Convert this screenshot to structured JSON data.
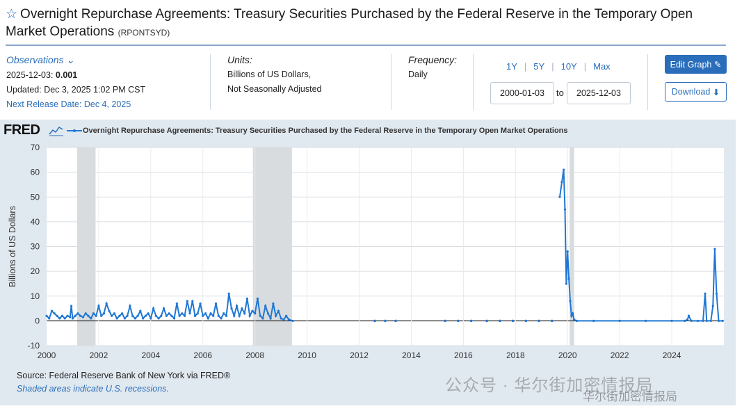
{
  "header": {
    "title": "Overnight Repurchase Agreements: Treasury Securities Purchased by the Federal Reserve in the Temporary Open Market Operations",
    "series_code": "(RPONTSYD)"
  },
  "observations": {
    "label": "Observations",
    "date": "2025-12-03:",
    "value": "0.001",
    "updated": "Updated: Dec 3, 2025 1:02 PM CST",
    "next_release": "Next Release Date: Dec 4, 2025"
  },
  "units": {
    "label": "Units:",
    "line1": "Billions of US Dollars,",
    "line2": "Not Seasonally Adjusted"
  },
  "frequency": {
    "label": "Frequency:",
    "value": "Daily"
  },
  "range": {
    "links": [
      "1Y",
      "5Y",
      "10Y",
      "Max"
    ],
    "start": "2000-01-03",
    "to": "to",
    "end": "2025-12-03"
  },
  "buttons": {
    "edit": "Edit Graph",
    "download": "Download"
  },
  "footer": {
    "source": "Source: Federal Reserve Bank of New York via FRED®",
    "shaded": "Shaded areas indicate U.S. recessions."
  },
  "watermark": {
    "main": "公众号 · 华尔街加密情报局",
    "sub": "华尔街加密情报局"
  },
  "colors": {
    "accent": "#2a6ebb",
    "series": "#1f77d4",
    "recession": "#c8cdd2"
  },
  "chart_data": {
    "type": "line",
    "logo": "FRED",
    "title": "Overnight Repurchase Agreements: Treasury Securities Purchased by the Federal Reserve in the Temporary Open Market Operations",
    "xlabel": "",
    "ylabel": "Billions of US Dollars",
    "xlim": [
      2000,
      2026
    ],
    "ylim": [
      -10,
      70
    ],
    "yticks": [
      -10,
      0,
      10,
      20,
      30,
      40,
      50,
      60,
      70
    ],
    "xticks": [
      2000,
      2002,
      2004,
      2006,
      2008,
      2010,
      2012,
      2014,
      2016,
      2018,
      2020,
      2022,
      2024
    ],
    "recessions": [
      [
        2001.17,
        2001.88
      ],
      [
        2007.92,
        2009.42
      ],
      [
        2020.08,
        2020.25
      ]
    ],
    "series": [
      {
        "name": "RPONTSYD",
        "segments": [
          [
            [
              2000.0,
              2
            ],
            [
              2000.1,
              1
            ],
            [
              2000.2,
              4
            ],
            [
              2000.3,
              3
            ],
            [
              2000.4,
              2
            ],
            [
              2000.5,
              1
            ],
            [
              2000.6,
              2
            ],
            [
              2000.7,
              1
            ],
            [
              2000.8,
              2
            ],
            [
              2000.9,
              1.5
            ],
            [
              2000.95,
              6
            ],
            [
              2001.0,
              1
            ],
            [
              2001.1,
              2
            ],
            [
              2001.2,
              3
            ],
            [
              2001.3,
              2
            ],
            [
              2001.4,
              1.5
            ],
            [
              2001.5,
              3
            ],
            [
              2001.6,
              2
            ],
            [
              2001.7,
              1
            ],
            [
              2001.8,
              3
            ],
            [
              2001.9,
              2
            ],
            [
              2002.0,
              6
            ],
            [
              2002.1,
              2
            ],
            [
              2002.2,
              3
            ],
            [
              2002.3,
              7
            ],
            [
              2002.4,
              4
            ],
            [
              2002.5,
              2
            ],
            [
              2002.6,
              3
            ],
            [
              2002.7,
              1
            ],
            [
              2002.8,
              2
            ],
            [
              2002.9,
              3
            ],
            [
              2003.0,
              1
            ],
            [
              2003.1,
              2
            ],
            [
              2003.2,
              6
            ],
            [
              2003.3,
              2
            ],
            [
              2003.4,
              1
            ],
            [
              2003.5,
              2
            ],
            [
              2003.6,
              4
            ],
            [
              2003.7,
              1
            ],
            [
              2003.8,
              2
            ],
            [
              2003.9,
              3
            ],
            [
              2004.0,
              1
            ],
            [
              2004.1,
              5
            ],
            [
              2004.2,
              2
            ],
            [
              2004.3,
              1
            ],
            [
              2004.4,
              2
            ],
            [
              2004.5,
              5
            ],
            [
              2004.6,
              2
            ],
            [
              2004.7,
              3
            ],
            [
              2004.8,
              2
            ],
            [
              2004.9,
              1
            ],
            [
              2005.0,
              7
            ],
            [
              2005.1,
              2
            ],
            [
              2005.2,
              3
            ],
            [
              2005.3,
              2
            ],
            [
              2005.4,
              8
            ],
            [
              2005.5,
              3
            ],
            [
              2005.6,
              8
            ],
            [
              2005.7,
              2
            ],
            [
              2005.8,
              3
            ],
            [
              2005.9,
              7
            ],
            [
              2006.0,
              2
            ],
            [
              2006.1,
              3
            ],
            [
              2006.2,
              1
            ],
            [
              2006.3,
              3
            ],
            [
              2006.4,
              2
            ],
            [
              2006.5,
              7
            ],
            [
              2006.6,
              2
            ],
            [
              2006.7,
              1
            ],
            [
              2006.8,
              3
            ],
            [
              2006.9,
              2
            ],
            [
              2007.0,
              11
            ],
            [
              2007.1,
              5
            ],
            [
              2007.2,
              2
            ],
            [
              2007.3,
              6
            ],
            [
              2007.4,
              2
            ],
            [
              2007.5,
              5
            ],
            [
              2007.6,
              3
            ],
            [
              2007.7,
              9
            ],
            [
              2007.8,
              2
            ],
            [
              2007.9,
              4
            ],
            [
              2008.0,
              3
            ],
            [
              2008.1,
              9
            ],
            [
              2008.2,
              2
            ],
            [
              2008.3,
              1
            ],
            [
              2008.4,
              6
            ],
            [
              2008.5,
              3
            ],
            [
              2008.6,
              1
            ],
            [
              2008.7,
              7
            ],
            [
              2008.8,
              2
            ],
            [
              2008.9,
              4
            ],
            [
              2009.0,
              1
            ],
            [
              2009.1,
              0.5
            ],
            [
              2009.2,
              2
            ],
            [
              2009.3,
              0.5
            ],
            [
              2009.45,
              0
            ]
          ]
        ],
        "isolated_points": [
          [
            2012.6,
            0
          ],
          [
            2013.0,
            0
          ],
          [
            2013.4,
            0
          ],
          [
            2015.3,
            0
          ],
          [
            2015.8,
            0
          ],
          [
            2016.3,
            0
          ],
          [
            2016.9,
            0
          ],
          [
            2017.4,
            0
          ],
          [
            2017.9,
            0
          ],
          [
            2018.4,
            0
          ],
          [
            2018.9,
            0
          ],
          [
            2019.4,
            0
          ]
        ],
        "segments_2": [
          [
            [
              2019.7,
              50
            ],
            [
              2019.78,
              56
            ],
            [
              2019.85,
              61
            ],
            [
              2019.9,
              45
            ],
            [
              2019.95,
              15
            ],
            [
              2020.0,
              28
            ],
            [
              2020.05,
              17
            ],
            [
              2020.1,
              8
            ],
            [
              2020.15,
              2
            ],
            [
              2020.2,
              3
            ],
            [
              2020.25,
              0.5
            ],
            [
              2020.35,
              0
            ],
            [
              2021.0,
              0
            ],
            [
              2022.0,
              0
            ],
            [
              2023.0,
              0
            ],
            [
              2024.0,
              0
            ],
            [
              2024.5,
              0
            ],
            [
              2024.6,
              0.5
            ],
            [
              2024.65,
              2
            ],
            [
              2024.75,
              0
            ],
            [
              2025.0,
              0
            ],
            [
              2025.2,
              0
            ],
            [
              2025.28,
              11
            ],
            [
              2025.34,
              0
            ],
            [
              2025.5,
              0
            ],
            [
              2025.58,
              6
            ],
            [
              2025.65,
              29
            ],
            [
              2025.72,
              11
            ],
            [
              2025.8,
              0
            ],
            [
              2025.95,
              0
            ]
          ]
        ]
      }
    ]
  }
}
